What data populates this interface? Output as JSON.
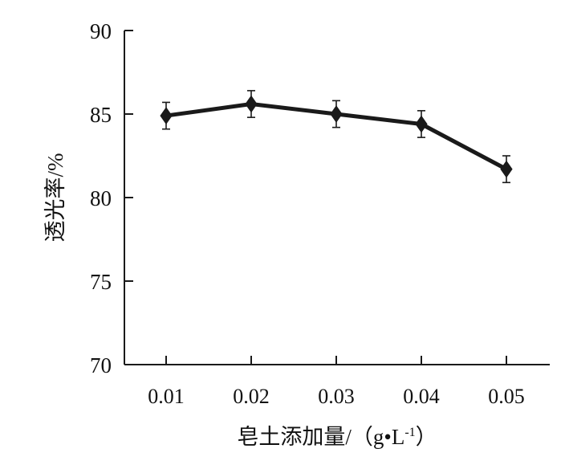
{
  "chart_data": {
    "type": "line",
    "title": "",
    "xlabel": "皂土添加量/（g•L-1）",
    "xlabel_parts": {
      "main": "皂土添加量/（g•L",
      "superscript": "-1",
      "close": "）"
    },
    "ylabel": "透光率/%",
    "categories": [
      "0.01",
      "0.02",
      "0.03",
      "0.04",
      "0.05"
    ],
    "series": [
      {
        "values": [
          84.9,
          85.6,
          85.0,
          84.4,
          81.7
        ],
        "error": [
          0.8,
          0.8,
          0.8,
          0.8,
          0.8
        ]
      }
    ],
    "ylim": [
      70,
      90
    ],
    "yticks": [
      "70",
      "75",
      "80",
      "85",
      "90"
    ],
    "grid": false,
    "line_color": "#1a1a1a",
    "marker": "diamond"
  }
}
